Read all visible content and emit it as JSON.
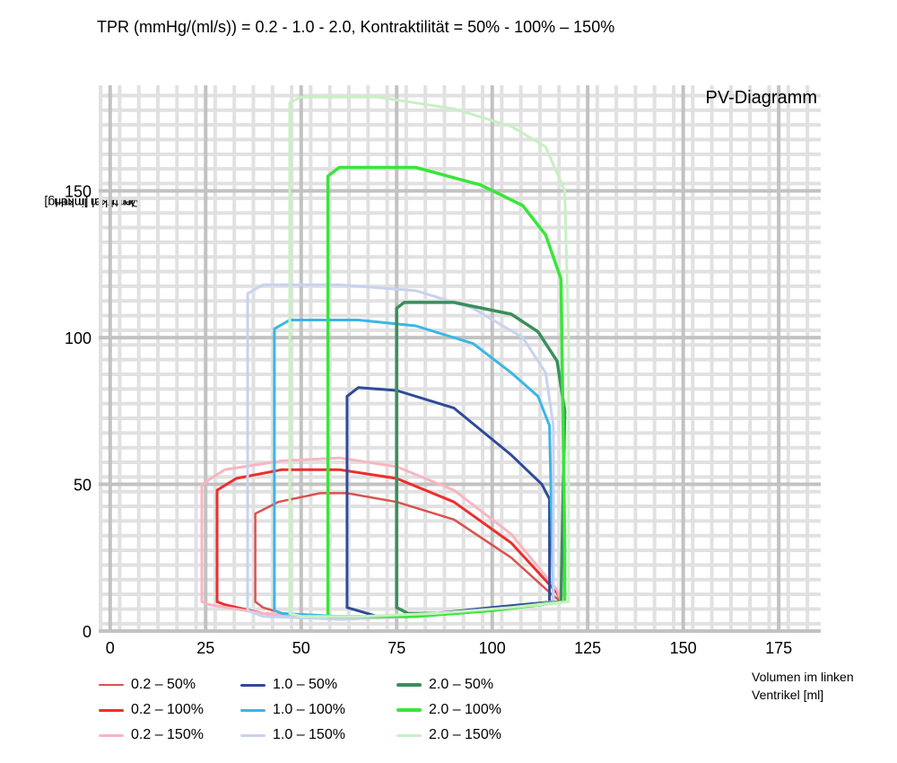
{
  "chart_data": {
    "type": "line",
    "title": "TPR (mmHg/(ml/s)) = 0.2 - 1.0 - 2.0, Kontraktilität = 50% - 100% – 150%",
    "annotation": "PV-Diagramm",
    "xlabel_lines": [
      "Volumen im linken",
      "Ventrikel [ml]"
    ],
    "ylabel_lines": [
      "Druck im linken",
      "Ventrikel [mmHg]"
    ],
    "xlim": [
      -3,
      186
    ],
    "ylim": [
      0,
      186
    ],
    "xticks": [
      0,
      25,
      50,
      75,
      100,
      125,
      150,
      175
    ],
    "yticks": [
      0,
      50,
      100,
      150
    ],
    "grid": true,
    "legend_position": "bottom-left",
    "series": [
      {
        "name": "0.2 – 50%",
        "color": "#d9534f",
        "width": 2.5,
        "points": [
          [
            38,
            10
          ],
          [
            38,
            40
          ],
          [
            44,
            44
          ],
          [
            55,
            47
          ],
          [
            62,
            47
          ],
          [
            75,
            44
          ],
          [
            90,
            38
          ],
          [
            105,
            25
          ],
          [
            116,
            12
          ],
          [
            118,
            10
          ],
          [
            100,
            7
          ],
          [
            80,
            5
          ],
          [
            60,
            4
          ],
          [
            48,
            5
          ],
          [
            40,
            8
          ],
          [
            38,
            10
          ]
        ]
      },
      {
        "name": "0.2 – 100%",
        "color": "#ee2d2d",
        "width": 3,
        "points": [
          [
            28,
            10
          ],
          [
            28,
            48
          ],
          [
            33,
            52
          ],
          [
            45,
            55
          ],
          [
            60,
            55
          ],
          [
            75,
            52
          ],
          [
            90,
            44
          ],
          [
            105,
            30
          ],
          [
            117,
            13
          ],
          [
            118,
            10
          ],
          [
            100,
            7
          ],
          [
            80,
            5
          ],
          [
            60,
            4
          ],
          [
            40,
            6
          ],
          [
            30,
            9
          ],
          [
            28,
            10
          ]
        ]
      },
      {
        "name": "0.2 – 150%",
        "color": "#f7b6c2",
        "width": 3,
        "points": [
          [
            24,
            10
          ],
          [
            24,
            50
          ],
          [
            30,
            55
          ],
          [
            45,
            58
          ],
          [
            60,
            59
          ],
          [
            75,
            56
          ],
          [
            90,
            48
          ],
          [
            105,
            33
          ],
          [
            117,
            14
          ],
          [
            118,
            10
          ],
          [
            100,
            7
          ],
          [
            80,
            5
          ],
          [
            60,
            4
          ],
          [
            40,
            6
          ],
          [
            26,
            9
          ],
          [
            24,
            10
          ]
        ]
      },
      {
        "name": "1.0 – 50%",
        "color": "#2f4a9a",
        "width": 3,
        "points": [
          [
            62,
            8
          ],
          [
            62,
            80
          ],
          [
            65,
            83
          ],
          [
            75,
            82
          ],
          [
            90,
            76
          ],
          [
            105,
            60
          ],
          [
            113,
            50
          ],
          [
            115,
            45
          ],
          [
            115,
            10
          ],
          [
            116,
            10
          ],
          [
            100,
            8
          ],
          [
            85,
            6
          ],
          [
            70,
            5
          ],
          [
            62,
            8
          ]
        ]
      },
      {
        "name": "1.0 – 100%",
        "color": "#3bb6e6",
        "width": 3,
        "points": [
          [
            43,
            7
          ],
          [
            43,
            103
          ],
          [
            47,
            106
          ],
          [
            65,
            106
          ],
          [
            80,
            104
          ],
          [
            95,
            98
          ],
          [
            105,
            88
          ],
          [
            112,
            80
          ],
          [
            115,
            70
          ],
          [
            116,
            10
          ],
          [
            100,
            7
          ],
          [
            80,
            5
          ],
          [
            60,
            5
          ],
          [
            45,
            6
          ],
          [
            43,
            7
          ]
        ]
      },
      {
        "name": "1.0 – 150%",
        "color": "#c8d2f0",
        "width": 3,
        "points": [
          [
            36,
            7
          ],
          [
            36,
            115
          ],
          [
            40,
            118
          ],
          [
            60,
            118
          ],
          [
            80,
            116
          ],
          [
            95,
            110
          ],
          [
            108,
            100
          ],
          [
            114,
            88
          ],
          [
            116,
            70
          ],
          [
            116,
            10
          ],
          [
            100,
            7
          ],
          [
            80,
            5
          ],
          [
            60,
            4
          ],
          [
            40,
            5
          ],
          [
            36,
            7
          ]
        ]
      },
      {
        "name": "2.0 – 50%",
        "color": "#3a8f5c",
        "width": 3.5,
        "points": [
          [
            75,
            8
          ],
          [
            75,
            110
          ],
          [
            77,
            112
          ],
          [
            90,
            112
          ],
          [
            105,
            108
          ],
          [
            112,
            102
          ],
          [
            117,
            92
          ],
          [
            119,
            75
          ],
          [
            118,
            10
          ],
          [
            105,
            8
          ],
          [
            90,
            6
          ],
          [
            78,
            6
          ],
          [
            75,
            8
          ]
        ]
      },
      {
        "name": "2.0 – 100%",
        "color": "#39e639",
        "width": 3.5,
        "points": [
          [
            57,
            5
          ],
          [
            57,
            155
          ],
          [
            60,
            158
          ],
          [
            80,
            158
          ],
          [
            97,
            152
          ],
          [
            108,
            145
          ],
          [
            114,
            135
          ],
          [
            118,
            120
          ],
          [
            119,
            30
          ],
          [
            119,
            10
          ],
          [
            100,
            7
          ],
          [
            80,
            5
          ],
          [
            65,
            5
          ],
          [
            57,
            5
          ]
        ]
      },
      {
        "name": "2.0 – 150%",
        "color": "#c8f0c3",
        "width": 3,
        "points": [
          [
            47,
            6
          ],
          [
            47,
            180
          ],
          [
            50,
            182
          ],
          [
            70,
            182
          ],
          [
            90,
            178
          ],
          [
            105,
            172
          ],
          [
            114,
            165
          ],
          [
            119,
            150
          ],
          [
            120,
            100
          ],
          [
            120,
            10
          ],
          [
            105,
            8
          ],
          [
            85,
            6
          ],
          [
            65,
            5
          ],
          [
            50,
            5
          ],
          [
            47,
            6
          ]
        ]
      }
    ]
  }
}
